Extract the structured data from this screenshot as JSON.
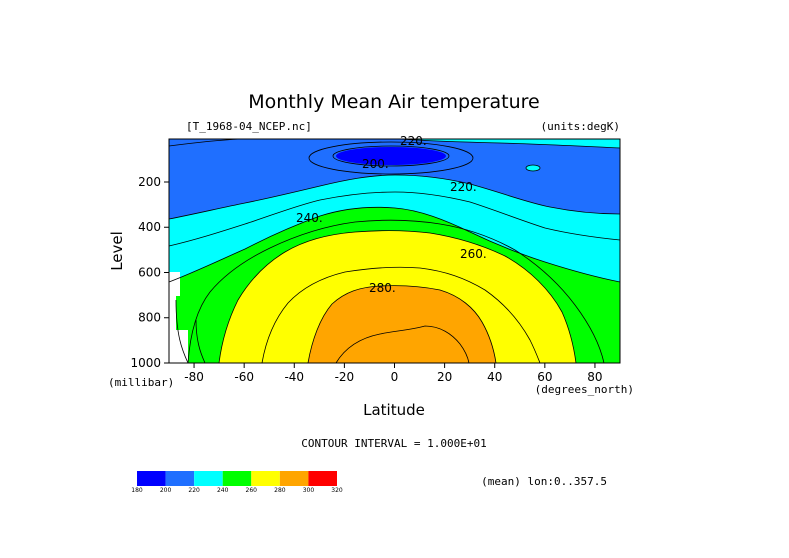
{
  "chart_data": {
    "type": "heatmap",
    "title": "Monthly Mean Air temperature",
    "dataset": "[T_1968-04_NCEP.nc]",
    "units_note": "(units:degK)",
    "xlabel": "Latitude",
    "x_units": "(degrees_north)",
    "ylabel": "Level",
    "y_units": "(millibar)",
    "xlim": [
      -90,
      90
    ],
    "ylim": [
      1000,
      10
    ],
    "x_ticks": [
      "-80",
      "-60",
      "-40",
      "-20",
      "0",
      "20",
      "40",
      "60",
      "80"
    ],
    "y_ticks": [
      "200",
      "400",
      "600",
      "800",
      "1000"
    ],
    "contour_interval_text": "CONTOUR INTERVAL = 1.000E+01",
    "mean_note": "(mean) lon:0..357.5",
    "contour_labels": [
      "200.",
      "220.",
      "240.",
      "260.",
      "280."
    ],
    "top_contour_label": "220.",
    "colorbar": {
      "labels": [
        "180",
        "200",
        "220",
        "240",
        "260",
        "280",
        "300",
        "320"
      ],
      "colors": [
        "#0000ff",
        "#1f6fff",
        "#00ffff",
        "#00ff00",
        "#ffff00",
        "#ffa500",
        "#ff0000"
      ]
    },
    "bands": [
      {
        "range": [
          190,
          200
        ],
        "color": "#0000ff"
      },
      {
        "range": [
          200,
          220
        ],
        "color": "#1f6fff"
      },
      {
        "range": [
          220,
          240
        ],
        "color": "#00ffff"
      },
      {
        "range": [
          240,
          260
        ],
        "color": "#00ff00"
      },
      {
        "range": [
          260,
          280
        ],
        "color": "#ffff00"
      },
      {
        "range": [
          280,
          300
        ],
        "color": "#ffa500"
      }
    ]
  }
}
